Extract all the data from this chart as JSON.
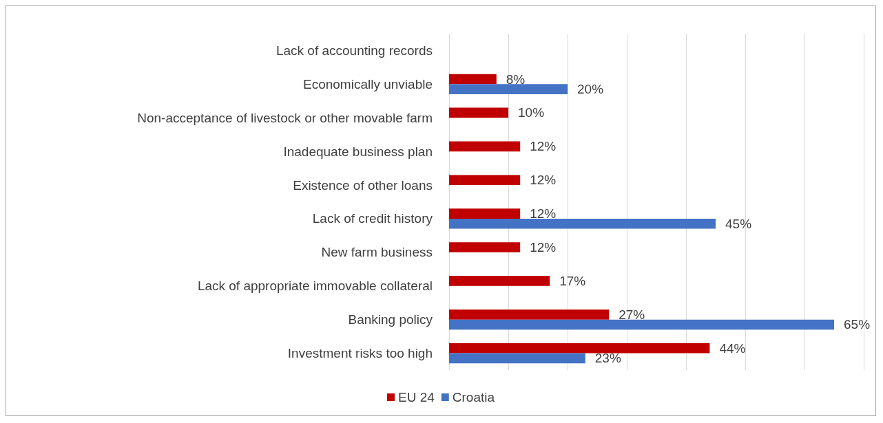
{
  "chart_data": {
    "type": "bar",
    "orientation": "horizontal",
    "categories": [
      "Lack of accounting records",
      "Economically unviable",
      "Non-acceptance of livestock or other movable farm",
      "Inadequate business plan",
      "Existence of other loans",
      "Lack of credit history",
      "New farm business",
      "Lack of appropriate immovable collateral",
      "Banking policy",
      "Investment risks too high"
    ],
    "series": [
      {
        "name": "EU 24",
        "color": "#c00000",
        "values": [
          null,
          8,
          10,
          12,
          12,
          12,
          12,
          17,
          27,
          44
        ],
        "value_labels": [
          null,
          "8%",
          "10%",
          "12%",
          "12%",
          "12%",
          "12%",
          "17%",
          "27%",
          "44%"
        ]
      },
      {
        "name": "Croatia",
        "color": "#4472c4",
        "values": [
          null,
          20,
          null,
          null,
          null,
          45,
          null,
          null,
          65,
          23
        ],
        "value_labels": [
          null,
          "20%",
          null,
          null,
          null,
          "45%",
          null,
          null,
          "65%",
          "23%"
        ]
      }
    ],
    "xlim": [
      0,
      70
    ],
    "xticks": [
      {
        "value": 0,
        "label": null
      },
      {
        "value": 10,
        "label": null
      },
      {
        "value": 20,
        "label": null
      },
      {
        "value": 30,
        "label": null
      },
      {
        "value": 40,
        "label": null
      },
      {
        "value": 50,
        "label": null
      },
      {
        "value": 60,
        "label": null
      },
      {
        "value": 70,
        "label": null
      }
    ],
    "tick_labels": "y",
    "grid": "x",
    "legend": "bottom"
  }
}
